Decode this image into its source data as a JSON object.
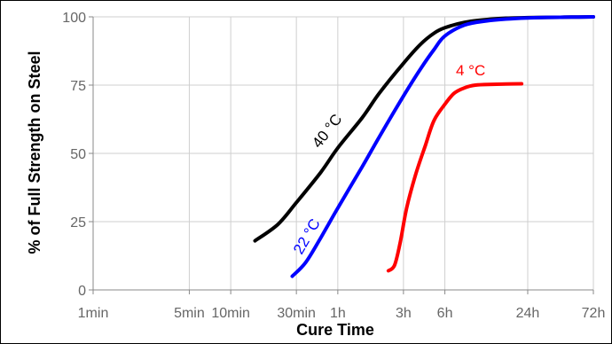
{
  "chart_data": {
    "type": "line",
    "xlabel": "Cure Time",
    "ylabel": "% of Full Strength on Steel",
    "x_scale": "log",
    "x_unit": "minutes",
    "xlim": [
      1,
      4320
    ],
    "ylim": [
      0,
      100
    ],
    "grid": true,
    "x_ticks": [
      {
        "label": "1min",
        "value": 1
      },
      {
        "label": "5min",
        "value": 5
      },
      {
        "label": "10min",
        "value": 10
      },
      {
        "label": "30min",
        "value": 30
      },
      {
        "label": "1h",
        "value": 60
      },
      {
        "label": "3h",
        "value": 180
      },
      {
        "label": "6h",
        "value": 360
      },
      {
        "label": "24h",
        "value": 1440
      },
      {
        "label": "72h",
        "value": 4320
      }
    ],
    "y_ticks": [
      {
        "label": "0",
        "value": 0
      },
      {
        "label": "25",
        "value": 25
      },
      {
        "label": "50",
        "value": 50
      },
      {
        "label": "75",
        "value": 75
      },
      {
        "label": "100",
        "value": 100
      }
    ],
    "series": [
      {
        "name": "40 °C",
        "color": "#000000",
        "x": [
          15,
          22,
          30,
          45,
          60,
          90,
          120,
          180,
          240,
          300,
          360,
          500,
          720,
          1000,
          1440,
          2000,
          3000,
          4320
        ],
        "y": [
          18,
          24,
          32,
          43,
          52,
          63,
          72,
          83,
          90,
          94,
          96,
          98,
          99,
          99.5,
          99.7,
          99.8,
          99.9,
          100
        ]
      },
      {
        "name": "22 °C",
        "color": "#0000ff",
        "x": [
          28,
          35,
          45,
          60,
          90,
          120,
          180,
          240,
          300,
          360,
          500,
          720,
          1000,
          1440,
          2000,
          3000,
          4320
        ],
        "y": [
          5,
          10,
          19,
          30,
          45,
          56,
          71,
          81,
          88,
          93,
          97,
          98.5,
          99.2,
          99.6,
          99.8,
          99.9,
          100
        ]
      },
      {
        "name": "4 °C",
        "color": "#ff0000",
        "x": [
          140,
          155,
          170,
          190,
          220,
          260,
          300,
          360,
          420,
          500,
          600,
          800,
          1000,
          1300
        ],
        "y": [
          7,
          9,
          17,
          30,
          42,
          53,
          62,
          68,
          72,
          74,
          75,
          75.3,
          75.4,
          75.5
        ]
      }
    ]
  }
}
